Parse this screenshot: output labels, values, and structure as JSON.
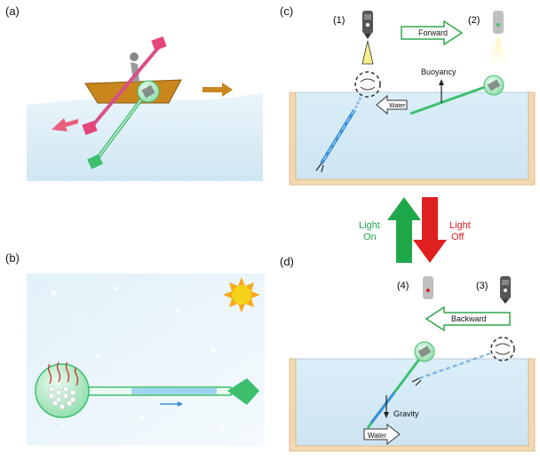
{
  "panels": {
    "a": {
      "label": "(a)"
    },
    "b": {
      "label": "(b)"
    },
    "c": {
      "label": "(c)",
      "step1": "(1)",
      "step2": "(2)",
      "direction": "Forward",
      "force": "Buoyancy",
      "flow": "Water"
    },
    "d": {
      "label": "(d)",
      "step3": "(3)",
      "step4": "(4)",
      "direction": "Backward",
      "force": "Gravity",
      "flow": "Water"
    }
  },
  "switch": {
    "on_line1": "Light",
    "on_line2": "On",
    "off_line1": "Light",
    "off_line2": "Off"
  },
  "colors": {
    "on": "#1fa84a",
    "off": "#e02020",
    "water": "#cfe6f4",
    "tank": "#f3d9b1",
    "boat": "#c8861c",
    "green_rod": "#3dbf6e",
    "pink_rod": "#d8508a",
    "blue_rod": "#3a8fd8",
    "sun": "#f7d21b"
  }
}
